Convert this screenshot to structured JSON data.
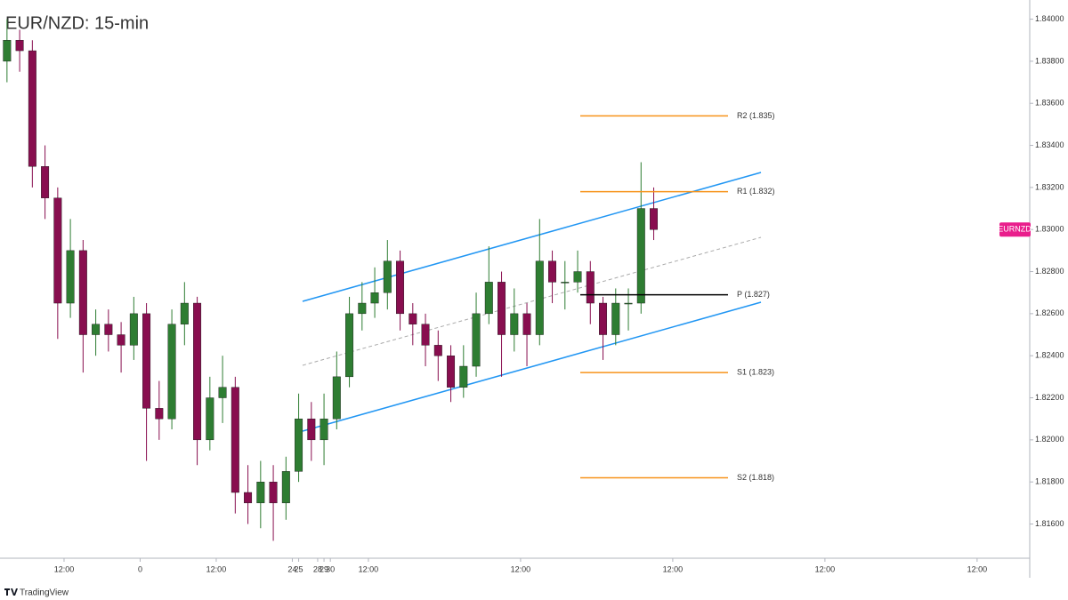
{
  "chart_data": {
    "type": "candlestick",
    "title": "EUR/NZD: 15-min",
    "x": [
      -21,
      -19,
      -17,
      -15,
      -13,
      -11,
      -9,
      -7,
      -5,
      -3,
      -1,
      1,
      3,
      5,
      7,
      9,
      11,
      13,
      15,
      17,
      19,
      21,
      23,
      25,
      27,
      29,
      31,
      33,
      35,
      37,
      39,
      41,
      43,
      45,
      47,
      49,
      51,
      53,
      55,
      57,
      59,
      61,
      63,
      65,
      67,
      69,
      71,
      73,
      75,
      77,
      79,
      81
    ],
    "series": {
      "open": [
        1.838,
        1.839,
        1.8385,
        1.833,
        1.8315,
        1.8265,
        1.829,
        1.825,
        1.8255,
        1.825,
        1.8245,
        1.826,
        1.8215,
        1.821,
        1.8255,
        1.8265,
        1.82,
        1.822,
        1.8225,
        1.8175,
        1.817,
        1.818,
        1.817,
        1.8185,
        1.821,
        1.82,
        1.821,
        1.823,
        1.826,
        1.8265,
        1.827,
        1.8285,
        1.826,
        1.8255,
        1.8245,
        1.824,
        1.8225,
        1.8235,
        1.826,
        1.8275,
        1.825,
        1.826,
        1.825,
        1.8285,
        1.8275,
        1.8275,
        1.828,
        1.8265,
        1.825,
        1.8265,
        1.8265,
        1.831
      ],
      "high": [
        1.84,
        1.8395,
        1.839,
        1.834,
        1.832,
        1.8305,
        1.8295,
        1.8262,
        1.8262,
        1.8256,
        1.8268,
        1.8265,
        1.8228,
        1.8262,
        1.8275,
        1.8268,
        1.823,
        1.824,
        1.823,
        1.8188,
        1.819,
        1.8188,
        1.8192,
        1.8222,
        1.8218,
        1.8222,
        1.8242,
        1.8268,
        1.8275,
        1.8282,
        1.8295,
        1.829,
        1.8265,
        1.826,
        1.8252,
        1.8245,
        1.8245,
        1.827,
        1.8292,
        1.828,
        1.8272,
        1.8265,
        1.8305,
        1.829,
        1.8285,
        1.829,
        1.8285,
        1.8268,
        1.8272,
        1.8272,
        1.8332,
        1.832
      ],
      "low": [
        1.837,
        1.8375,
        1.832,
        1.8305,
        1.8248,
        1.8258,
        1.8232,
        1.824,
        1.8242,
        1.8232,
        1.8238,
        1.819,
        1.82,
        1.8205,
        1.8245,
        1.8188,
        1.8195,
        1.8208,
        1.8165,
        1.816,
        1.8158,
        1.8152,
        1.8162,
        1.818,
        1.819,
        1.8188,
        1.8205,
        1.8225,
        1.8252,
        1.8258,
        1.8262,
        1.8252,
        1.8245,
        1.8235,
        1.8228,
        1.8218,
        1.822,
        1.823,
        1.8255,
        1.823,
        1.8242,
        1.8235,
        1.8245,
        1.8265,
        1.8262,
        1.827,
        1.8255,
        1.8238,
        1.8245,
        1.8252,
        1.826,
        1.8295
      ],
      "close": [
        1.839,
        1.8385,
        1.833,
        1.8315,
        1.8265,
        1.829,
        1.825,
        1.8255,
        1.825,
        1.8245,
        1.826,
        1.8215,
        1.821,
        1.8255,
        1.8265,
        1.82,
        1.822,
        1.8225,
        1.8175,
        1.817,
        1.818,
        1.817,
        1.8185,
        1.821,
        1.82,
        1.821,
        1.823,
        1.826,
        1.8265,
        1.827,
        1.8285,
        1.826,
        1.8255,
        1.8245,
        1.824,
        1.8225,
        1.8235,
        1.826,
        1.8275,
        1.825,
        1.826,
        1.825,
        1.8285,
        1.8275,
        1.8275,
        1.828,
        1.8265,
        1.825,
        1.8265,
        1.8265,
        1.831,
        1.83
      ]
    },
    "up_color": "#2e7d32",
    "down_color": "#880e4f",
    "xlim": [
      -21.4,
      140.3
    ],
    "xticks": [
      {
        "value": -12,
        "label": "12:00"
      },
      0,
      {
        "value": 12,
        "label": "12:00"
      },
      24,
      {
        "value": 36,
        "label": "12:00"
      },
      25,
      {
        "value": 60,
        "label": "12:00"
      },
      28,
      {
        "value": 84,
        "label": "12:00"
      },
      29,
      {
        "value": 108,
        "label": "12:00"
      },
      30,
      {
        "value": 132,
        "label": "12:00"
      }
    ],
    "ylim": [
      1.8145,
      1.8407
    ],
    "yticks": [
      {
        "value": 1.84,
        "label": "1.84000"
      },
      {
        "value": 1.838,
        "label": "1.83800"
      },
      {
        "value": 1.836,
        "label": "1.83600"
      },
      {
        "value": 1.834,
        "label": "1.83400"
      },
      {
        "value": 1.832,
        "label": "1.83200"
      },
      {
        "value": 1.83,
        "label": "1.83000"
      },
      {
        "value": 1.828,
        "label": "1.82800"
      },
      {
        "value": 1.826,
        "label": "1.82600"
      },
      {
        "value": 1.824,
        "label": "1.82400"
      },
      {
        "value": 1.822,
        "label": "1.82200"
      },
      {
        "value": 1.82,
        "label": "1.82000"
      },
      {
        "value": 1.818,
        "label": "1.81800"
      },
      {
        "value": 1.816,
        "label": "1.81600"
      }
    ],
    "grid": false,
    "levels": [
      {
        "label": "R2 (1.835)",
        "value": 1.8354,
        "color": "#f7931a"
      },
      {
        "label": "R1 (1.832)",
        "value": 1.8318,
        "color": "#f7931a"
      },
      {
        "label": "P (1.827)",
        "value": 1.8269,
        "color": "#000000"
      },
      {
        "label": "S1 (1.823)",
        "value": 1.8232,
        "color": "#f7931a"
      },
      {
        "label": "S2 (1.818)",
        "value": 1.8182,
        "color": "#f7931a"
      }
    ],
    "symbol_label": "EURNZD",
    "symbol_color": "#e91e8c",
    "footer": "TradingView"
  }
}
